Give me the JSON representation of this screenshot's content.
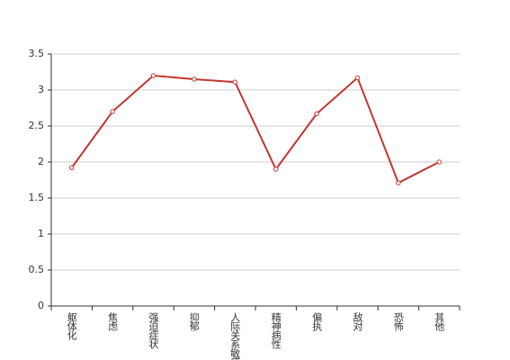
{
  "chart_data": {
    "type": "line",
    "categories": [
      "躯体化",
      "焦虑",
      "强迫症状",
      "抑郁",
      "人际关系敏感",
      "精神病性",
      "偏执",
      "敌对",
      "恐怖",
      "其他"
    ],
    "series": [
      {
        "color": "#c23531",
        "values": [
          1.92,
          2.7,
          3.2,
          3.15,
          3.11,
          1.9,
          2.67,
          3.17,
          1.71,
          2.0
        ]
      }
    ],
    "ylim": [
      0,
      3.5
    ],
    "yticks": [
      0,
      0.5,
      1,
      1.5,
      2,
      2.5,
      3,
      3.5
    ],
    "grid": true
  }
}
